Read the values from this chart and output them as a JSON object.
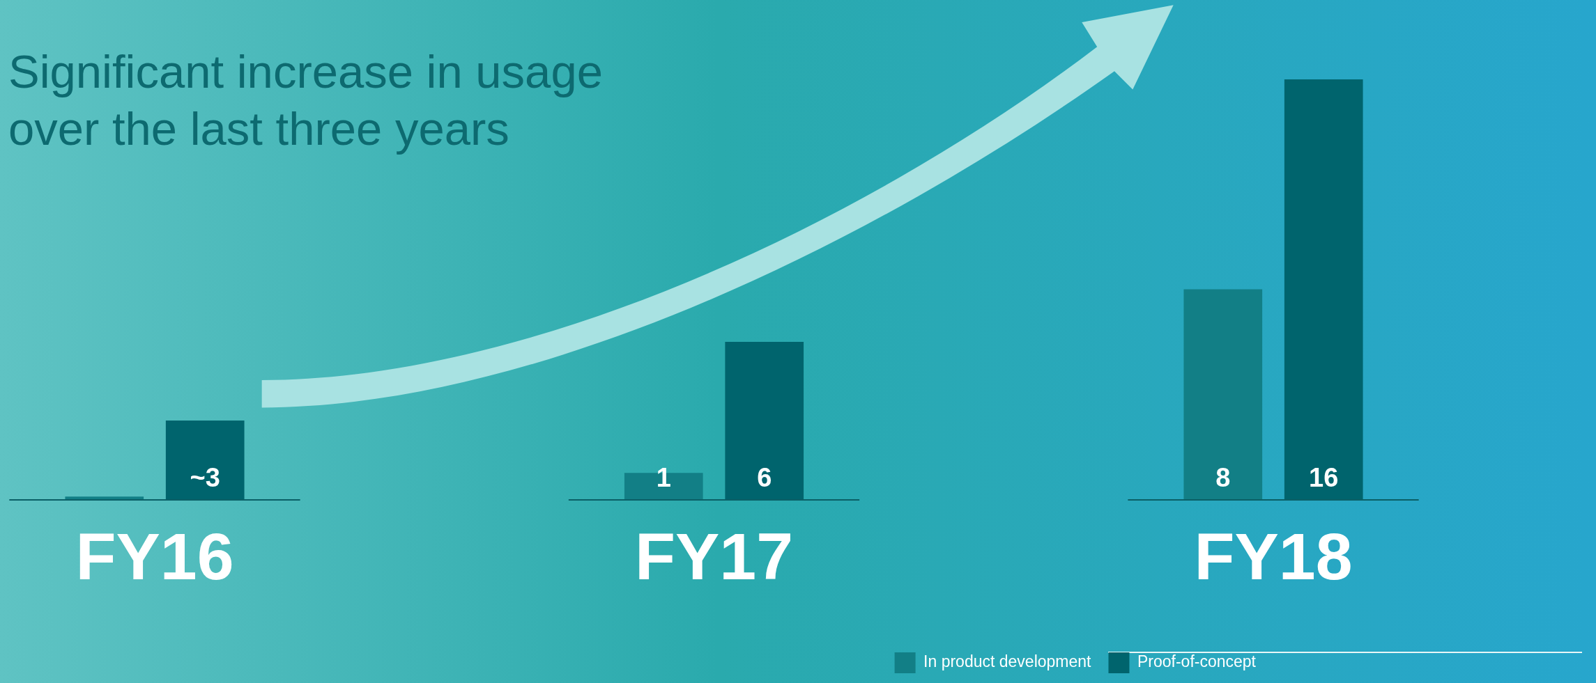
{
  "chart_data": {
    "type": "bar",
    "title": "Significant increase in usage\nover the last three years",
    "categories": [
      "FY16",
      "FY17",
      "FY18"
    ],
    "series": [
      {
        "name": "In product development",
        "color": "#127f86",
        "values": [
          0.1,
          1,
          8
        ],
        "value_labels": [
          null,
          "1",
          "8"
        ]
      },
      {
        "name": "Proof-of-concept",
        "color": "#00646d",
        "values": [
          3,
          6,
          16
        ],
        "value_labels": [
          "~3",
          "6",
          "16"
        ]
      }
    ],
    "legend": "bottom right"
  }
}
